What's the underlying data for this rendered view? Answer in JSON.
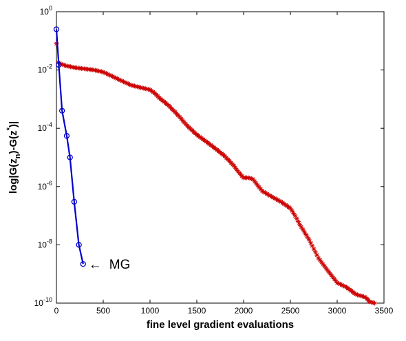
{
  "chart_data": {
    "type": "line",
    "title": "",
    "xlabel": "fine level gradient evaluations",
    "ylabel": "log|G(z_n)-G(z*)|",
    "xlim": [
      0,
      3500
    ],
    "ylim": [
      1e-10,
      1
    ],
    "yscale": "log",
    "grid": false,
    "x_ticks": [
      "0",
      "500",
      "1000",
      "1500",
      "2000",
      "2500",
      "3000",
      "3500"
    ],
    "x_tick_values": [
      0,
      500,
      1000,
      1500,
      2000,
      2500,
      3000,
      3500
    ],
    "y_tick_exponents": [
      "0",
      "-2",
      "-4",
      "-6",
      "-8",
      "-10"
    ],
    "y_tick_values": [
      1,
      0.01,
      0.0001,
      1e-06,
      1e-08,
      1e-10
    ],
    "series": [
      {
        "color": "#0000cc",
        "line_style": "solid",
        "marker": "circle",
        "x": [
          0,
          25,
          60,
          110,
          145,
          190,
          240,
          285
        ],
        "y": [
          0.25,
          0.015,
          0.0004,
          5.5e-05,
          1e-05,
          3e-07,
          1e-08,
          2.2e-09
        ]
      },
      {
        "color": "#cc0000",
        "line_style": "none",
        "marker": "star",
        "x": [
          0,
          20,
          50,
          100,
          200,
          300,
          400,
          500,
          600,
          700,
          800,
          900,
          1000,
          1050,
          1100,
          1200,
          1300,
          1400,
          1500,
          1600,
          1700,
          1800,
          1900,
          1950,
          2000,
          2050,
          2100,
          2150,
          2200,
          2300,
          2400,
          2500,
          2550,
          2600,
          2700,
          2800,
          2900,
          3000,
          3100,
          3200,
          3300,
          3350,
          3400
        ],
        "y": [
          0.08,
          0.018,
          0.016,
          0.014,
          0.012,
          0.011,
          0.01,
          0.0085,
          0.006,
          0.0042,
          0.003,
          0.0025,
          0.0021,
          0.0016,
          0.0011,
          0.0006,
          0.00028,
          0.00012,
          6e-05,
          3.5e-05,
          2e-05,
          1.1e-05,
          5e-06,
          3e-06,
          2e-06,
          2e-06,
          1.8e-06,
          1.1e-06,
          7e-07,
          4.5e-07,
          3e-07,
          1.8e-07,
          1e-07,
          5e-08,
          1.5e-08,
          3.5e-09,
          1.3e-09,
          5e-10,
          3.5e-10,
          2e-10,
          1.6e-10,
          1.1e-10,
          1e-10
        ]
      }
    ],
    "annotations": [
      {
        "text": "MG",
        "arrow": "←",
        "x": 285,
        "y": 2.2e-09
      }
    ]
  },
  "colors": {
    "axis": "#000000",
    "mg_series": "#0000cc",
    "other_series": "#cc0000"
  }
}
